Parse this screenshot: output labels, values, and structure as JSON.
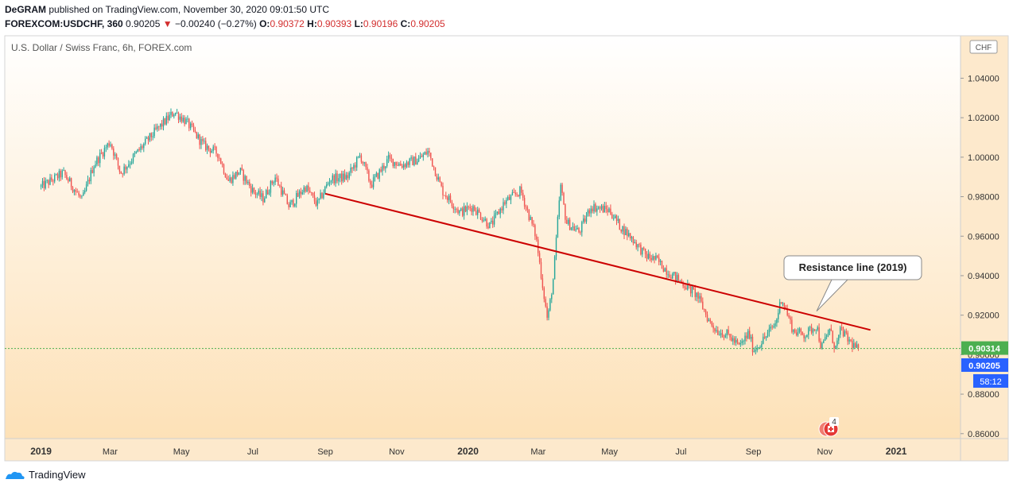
{
  "header": {
    "line1_user": "DeGRAM",
    "line1_rest": "published on TradingView.com, November 30, 2020 09:01:50 UTC",
    "symbol": "FOREXCOM:USDCHF, 360",
    "last": "0.90205",
    "arrow": "▼",
    "change": "−0.00240 (−0.27%)",
    "o_label": "O:",
    "o_value": "0.90372",
    "h_label": "H:",
    "h_value": "0.90393",
    "l_label": "L:",
    "l_value": "0.90196",
    "c_label": "C:",
    "c_value": "0.90205"
  },
  "chart_data": {
    "type": "line",
    "title": "U.S. Dollar / Swiss Franc, 6h, FOREX.com",
    "currency_label": "CHF",
    "y_ticks": [
      "0.86000",
      "0.88000",
      "0.90000",
      "0.92000",
      "0.94000",
      "0.96000",
      "0.98000",
      "1.00000",
      "1.02000",
      "1.04000"
    ],
    "ylim": [
      0.8575,
      1.0615
    ],
    "x_ticks": [
      "2019",
      "Mar",
      "May",
      "Jul",
      "Sep",
      "Nov",
      "2020",
      "Mar",
      "May",
      "Jul",
      "Sep",
      "Nov",
      "2021"
    ],
    "x_ticks_bold": [
      "2019",
      "2020",
      "2021"
    ],
    "x": [
      "2019-01-01",
      "2019-01-20",
      "2019-02-05",
      "2019-02-15",
      "2019-03-01",
      "2019-03-10",
      "2019-03-25",
      "2019-04-10",
      "2019-04-25",
      "2019-05-05",
      "2019-05-20",
      "2019-06-01",
      "2019-06-10",
      "2019-06-20",
      "2019-07-01",
      "2019-07-10",
      "2019-07-20",
      "2019-08-01",
      "2019-08-15",
      "2019-08-25",
      "2019-09-05",
      "2019-09-20",
      "2019-10-01",
      "2019-10-10",
      "2019-10-25",
      "2019-11-05",
      "2019-11-20",
      "2019-11-28",
      "2019-12-10",
      "2019-12-25",
      "2020-01-05",
      "2020-01-20",
      "2020-02-01",
      "2020-02-15",
      "2020-02-28",
      "2020-03-09",
      "2020-03-14",
      "2020-03-20",
      "2020-03-25",
      "2020-04-05",
      "2020-04-15",
      "2020-05-01",
      "2020-05-10",
      "2020-05-20",
      "2020-06-01",
      "2020-06-10",
      "2020-06-20",
      "2020-07-01",
      "2020-07-15",
      "2020-07-25",
      "2020-08-01",
      "2020-08-10",
      "2020-08-20",
      "2020-08-28",
      "2020-09-01",
      "2020-09-10",
      "2020-09-20",
      "2020-09-25",
      "2020-10-05",
      "2020-10-15",
      "2020-10-25",
      "2020-10-29",
      "2020-11-05",
      "2020-11-10",
      "2020-11-15",
      "2020-11-20",
      "2020-11-30"
    ],
    "values": [
      0.985,
      0.992,
      0.978,
      0.996,
      1.008,
      0.992,
      1.003,
      1.014,
      1.023,
      1.018,
      1.006,
      1.002,
      0.988,
      0.993,
      0.983,
      0.979,
      0.99,
      0.975,
      0.985,
      0.976,
      0.989,
      0.99,
      1.001,
      0.986,
      0.999,
      0.996,
      0.999,
      1.003,
      0.983,
      0.972,
      0.975,
      0.965,
      0.977,
      0.983,
      0.96,
      0.917,
      0.939,
      0.986,
      0.967,
      0.962,
      0.975,
      0.973,
      0.965,
      0.959,
      0.95,
      0.948,
      0.942,
      0.937,
      0.93,
      0.917,
      0.912,
      0.91,
      0.904,
      0.911,
      0.902,
      0.908,
      0.916,
      0.929,
      0.912,
      0.91,
      0.915,
      0.903,
      0.913,
      0.903,
      0.913,
      0.908,
      0.90205
    ],
    "series": [
      {
        "name": "FOREXCOM:USDCHF, 360",
        "color_up": "#26a69a",
        "color_down": "#ef5350"
      }
    ],
    "resistance_line": {
      "x1": "2019-09-01",
      "y1": 0.9815,
      "x2": "2020-12-10",
      "y2": 0.9125,
      "color": "#cc0000"
    },
    "annotation": {
      "text": "Resistance line (2019)",
      "anchor_x": "2020-10-25",
      "anchor_y": 0.922
    },
    "horizontal_line": {
      "value": 0.90314,
      "color": "#4caf50",
      "label": "0.90314"
    },
    "last_price": {
      "label": "0.90205",
      "color": "#2962ff"
    },
    "countdown": "58:12",
    "events_badge": "4"
  },
  "footer": {
    "logo_text": "TradingView"
  },
  "colors": {
    "bg_top": "#ffffff",
    "bg_bottom": "#fde1b7",
    "text": "#131722",
    "axis_border": "#e0e3eb"
  }
}
